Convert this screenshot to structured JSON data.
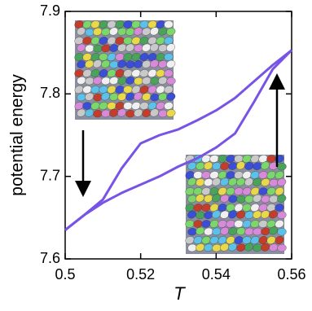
{
  "chart_data": {
    "type": "line",
    "x_label": "T",
    "y_label": "potential energy",
    "x": [
      0.5,
      0.505,
      0.51,
      0.515,
      0.52,
      0.525,
      0.53,
      0.535,
      0.54,
      0.545,
      0.55,
      0.555,
      0.56
    ],
    "series": [
      {
        "color": "#7753e6",
        "values": [
          7.635,
          7.653,
          7.672,
          7.71,
          7.74,
          7.75,
          7.757,
          7.768,
          7.78,
          7.795,
          7.815,
          7.835,
          7.853
        ]
      },
      {
        "color": "#7753e6",
        "values": [
          7.635,
          7.653,
          7.668,
          7.68,
          7.69,
          7.7,
          7.712,
          7.722,
          7.735,
          7.752,
          7.79,
          7.83,
          7.853
        ]
      }
    ],
    "xlim": [
      0.5,
      0.56
    ],
    "xticks": [
      0.5,
      0.52,
      0.54,
      0.56
    ],
    "ylim": [
      7.6,
      7.9
    ],
    "yticks": [
      7.6,
      7.7,
      7.8,
      7.9
    ]
  }
}
